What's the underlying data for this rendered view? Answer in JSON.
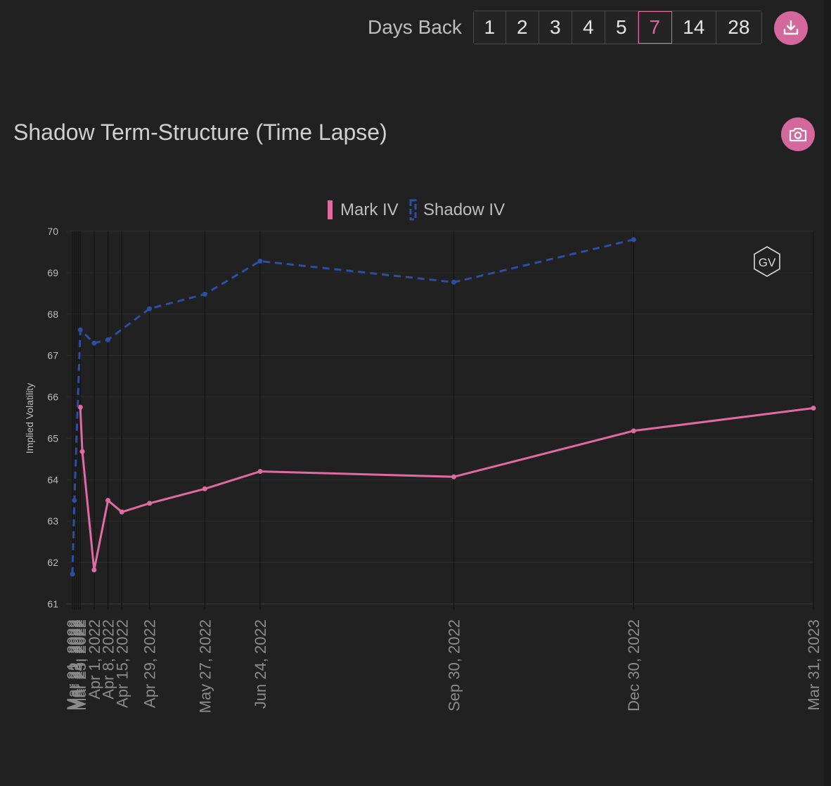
{
  "toolbar": {
    "days_back_label": "Days Back",
    "options": [
      "1",
      "2",
      "3",
      "4",
      "5",
      "7",
      "14",
      "28"
    ],
    "selected": "7"
  },
  "download_icon": "download-icon",
  "camera_icon": "camera-icon",
  "chart_title": "Shadow Term-Structure (Time Lapse)",
  "watermark": "GV",
  "colors": {
    "accent": "#e0679e",
    "mark": "#e06aa3",
    "shadow": "#2c4fa3",
    "background": "#212121"
  },
  "chart_data": {
    "type": "line",
    "title": "Shadow Term-Structure (Time Lapse)",
    "ylabel": "Implied Volatility",
    "xlabel": "",
    "ylim": [
      61,
      70
    ],
    "yticks": [
      61,
      62,
      63,
      64,
      65,
      66,
      67,
      68,
      69,
      70
    ],
    "x_scale": "time",
    "x_ticks": [
      "Mar 21, 2022",
      "Mar 22, 2022",
      "Mar 23, 2022",
      "Mar 24, 2022",
      "Mar 25, 2022",
      "Apr 1, 2022",
      "Apr 8, 2022",
      "Apr 15, 2022",
      "Apr 29, 2022",
      "May 27, 2022",
      "Jun 24, 2022",
      "Sep 30, 2022",
      "Dec 30, 2022",
      "Mar 31, 2023"
    ],
    "x_tick_labels": [
      "Mar 21, 2022",
      "Mar 22, 2022",
      "Mar 23, 2022",
      "Mar 24, 2022",
      "Mar 25, 2022",
      "Apr 1, 2022",
      "Apr 8, 2022",
      "Apr 15, 2022",
      "Apr 29, 2022",
      "May 27, 2022",
      "Jun 24, 2022",
      "Sep 30, 2022",
      "Dec 30, 2022",
      "Mar 31, 2023"
    ],
    "grid": true,
    "legend": "top-center",
    "series": [
      {
        "name": "Mark IV",
        "style": "solid",
        "points": [
          {
            "x": "Mar 25, 2022",
            "y": 65.75
          },
          {
            "x": "Mar 26, 2022",
            "y": 64.68
          },
          {
            "x": "Apr 1, 2022",
            "y": 61.82
          },
          {
            "x": "Apr 8, 2022",
            "y": 63.5
          },
          {
            "x": "Apr 15, 2022",
            "y": 63.22
          },
          {
            "x": "Apr 29, 2022",
            "y": 63.43
          },
          {
            "x": "May 27, 2022",
            "y": 63.78
          },
          {
            "x": "Jun 24, 2022",
            "y": 64.2
          },
          {
            "x": "Sep 30, 2022",
            "y": 64.07
          },
          {
            "x": "Dec 30, 2022",
            "y": 65.18
          },
          {
            "x": "Mar 31, 2023",
            "y": 65.73
          }
        ]
      },
      {
        "name": "Shadow IV",
        "style": "dashed",
        "points": [
          {
            "x": "Mar 21, 2022",
            "y": 61.72
          },
          {
            "x": "Mar 22, 2022",
            "y": 63.5
          },
          {
            "x": "Mar 25, 2022",
            "y": 67.62
          },
          {
            "x": "Apr 1, 2022",
            "y": 67.3
          },
          {
            "x": "Apr 8, 2022",
            "y": 67.38
          },
          {
            "x": "Apr 29, 2022",
            "y": 68.13
          },
          {
            "x": "May 27, 2022",
            "y": 68.48
          },
          {
            "x": "Jun 24, 2022",
            "y": 69.28
          },
          {
            "x": "Sep 30, 2022",
            "y": 68.77
          },
          {
            "x": "Dec 30, 2022",
            "y": 69.8
          }
        ]
      }
    ]
  }
}
